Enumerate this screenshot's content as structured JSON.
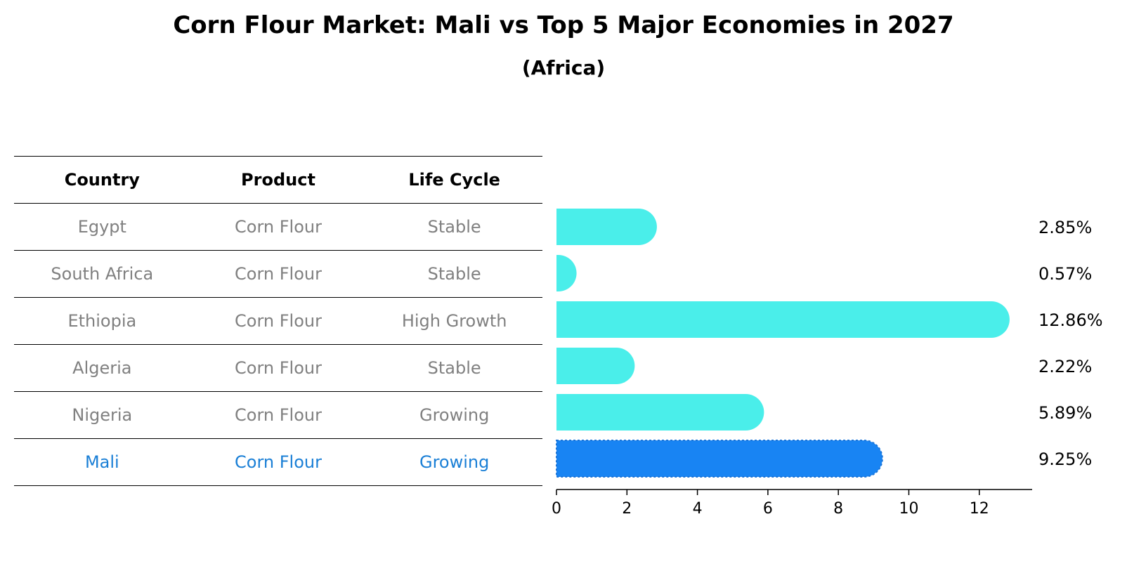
{
  "title": "Corn Flour Market: Mali vs Top 5 Major Economies in 2027",
  "subtitle": "(Africa)",
  "table": {
    "headers": [
      "Country",
      "Product",
      "Life Cycle"
    ],
    "rows": [
      {
        "country": "Egypt",
        "product": "Corn Flour",
        "life_cycle": "Stable"
      },
      {
        "country": "South Africa",
        "product": "Corn Flour",
        "life_cycle": "Stable"
      },
      {
        "country": "Ethiopia",
        "product": "Corn Flour",
        "life_cycle": "High Growth"
      },
      {
        "country": "Algeria",
        "product": "Corn Flour",
        "life_cycle": "Stable"
      },
      {
        "country": "Nigeria",
        "product": "Corn Flour",
        "life_cycle": "Growing"
      },
      {
        "country": "Mali",
        "product": "Corn Flour",
        "life_cycle": "Growing"
      }
    ],
    "highlight_row": 5
  },
  "colors": {
    "bar": "#4aeeea",
    "highlight_bar": "#1884f3",
    "row_text": "#808080",
    "highlight_text": "#1a7fd6"
  },
  "chart_data": {
    "type": "bar",
    "orientation": "horizontal",
    "categories": [
      "Egypt",
      "South Africa",
      "Ethiopia",
      "Algeria",
      "Nigeria",
      "Mali"
    ],
    "values": [
      2.85,
      0.57,
      12.86,
      2.22,
      5.89,
      9.25
    ],
    "value_labels": [
      "2.85%",
      "0.57%",
      "12.86%",
      "2.22%",
      "5.89%",
      "9.25%"
    ],
    "xlim": [
      0,
      13.5
    ],
    "xticks": [
      0,
      2,
      4,
      6,
      8,
      10,
      12
    ],
    "grid": false,
    "highlight": "Mali"
  }
}
